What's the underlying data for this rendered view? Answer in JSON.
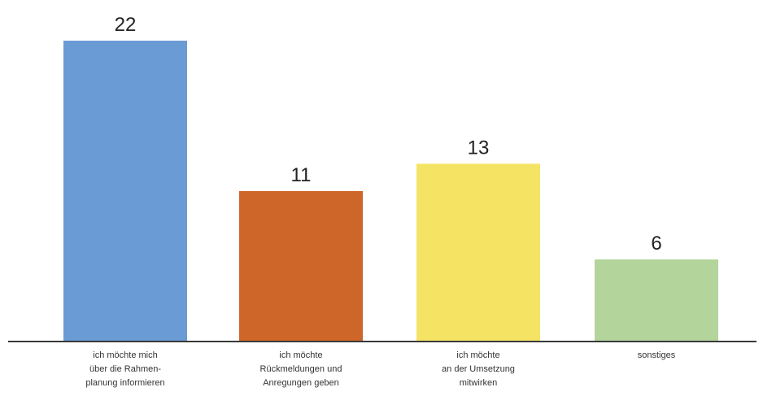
{
  "chart_data": {
    "type": "bar",
    "title": "",
    "xlabel": "",
    "ylabel": "",
    "ylim": [
      0,
      22
    ],
    "grid": false,
    "legend": "none",
    "categories": [
      [
        "ich möchte mich",
        "über die Rahmen-",
        "planung informieren"
      ],
      [
        "ich möchte",
        "Rückmeldungen und",
        "Anregungen geben"
      ],
      [
        "ich möchte",
        "an der Umsetzung",
        "mitwirken"
      ],
      [
        "sonstiges"
      ]
    ],
    "values": [
      22,
      11,
      13,
      6
    ],
    "data_labels": [
      "22",
      "11",
      "13",
      "6"
    ],
    "colors": [
      "#6b9bd4",
      "#cf6629",
      "#f5e464",
      "#b3d59c"
    ],
    "axis_color": "#3a3a3a"
  }
}
